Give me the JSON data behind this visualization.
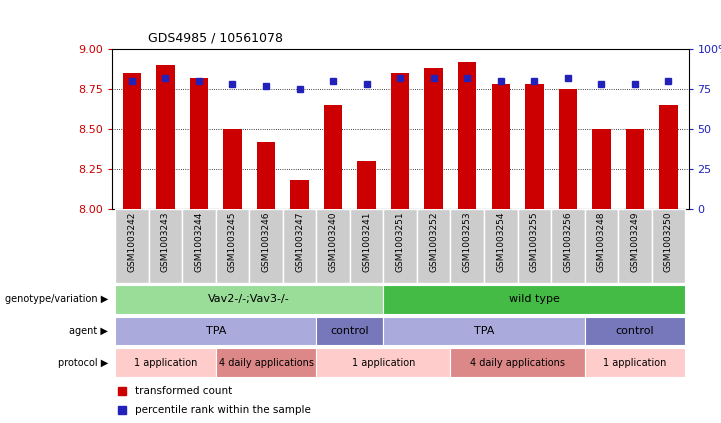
{
  "title": "GDS4985 / 10561078",
  "samples": [
    "GSM1003242",
    "GSM1003243",
    "GSM1003244",
    "GSM1003245",
    "GSM1003246",
    "GSM1003247",
    "GSM1003240",
    "GSM1003241",
    "GSM1003251",
    "GSM1003252",
    "GSM1003253",
    "GSM1003254",
    "GSM1003255",
    "GSM1003256",
    "GSM1003248",
    "GSM1003249",
    "GSM1003250"
  ],
  "transformed_count": [
    8.85,
    8.9,
    8.82,
    8.5,
    8.42,
    8.18,
    8.65,
    8.3,
    8.85,
    8.88,
    8.92,
    8.78,
    8.78,
    8.75,
    8.5,
    8.5,
    8.65
  ],
  "percentile_rank": [
    80,
    82,
    80,
    78,
    77,
    75,
    80,
    78,
    82,
    82,
    82,
    80,
    80,
    82,
    78,
    78,
    80
  ],
  "bar_color": "#cc0000",
  "dot_color": "#2222bb",
  "ylim_left": [
    8.0,
    9.0
  ],
  "ylim_right": [
    0,
    100
  ],
  "yticks_left": [
    8.0,
    8.25,
    8.5,
    8.75,
    9.0
  ],
  "yticks_right": [
    0,
    25,
    50,
    75,
    100
  ],
  "hlines": [
    8.25,
    8.5,
    8.75
  ],
  "background_color": "#ffffff",
  "genotype_row": [
    {
      "label": "Vav2-/-;Vav3-/-",
      "start": 0,
      "end": 8,
      "color": "#99dd99",
      "text_color": "#000000"
    },
    {
      "label": "wild type",
      "start": 8,
      "end": 17,
      "color": "#44bb44",
      "text_color": "#000000"
    }
  ],
  "agent_row": [
    {
      "label": "TPA",
      "start": 0,
      "end": 6,
      "color": "#aaaadd",
      "text_color": "#000000"
    },
    {
      "label": "control",
      "start": 6,
      "end": 8,
      "color": "#7777bb",
      "text_color": "#000000"
    },
    {
      "label": "TPA",
      "start": 8,
      "end": 14,
      "color": "#aaaadd",
      "text_color": "#000000"
    },
    {
      "label": "control",
      "start": 14,
      "end": 17,
      "color": "#7777bb",
      "text_color": "#000000"
    }
  ],
  "protocol_row": [
    {
      "label": "1 application",
      "start": 0,
      "end": 3,
      "color": "#ffcccc",
      "text_color": "#000000"
    },
    {
      "label": "4 daily applications",
      "start": 3,
      "end": 6,
      "color": "#dd8888",
      "text_color": "#000000"
    },
    {
      "label": "1 application",
      "start": 6,
      "end": 10,
      "color": "#ffcccc",
      "text_color": "#000000"
    },
    {
      "label": "4 daily applications",
      "start": 10,
      "end": 14,
      "color": "#dd8888",
      "text_color": "#000000"
    },
    {
      "label": "1 application",
      "start": 14,
      "end": 17,
      "color": "#ffcccc",
      "text_color": "#000000"
    }
  ],
  "row_labels": [
    "genotype/variation",
    "agent",
    "protocol"
  ],
  "legend_items": [
    {
      "label": "transformed count",
      "color": "#cc0000"
    },
    {
      "label": "percentile rank within the sample",
      "color": "#2222bb"
    }
  ],
  "sample_bg_color": "#cccccc",
  "sample_border_color": "#ffffff"
}
